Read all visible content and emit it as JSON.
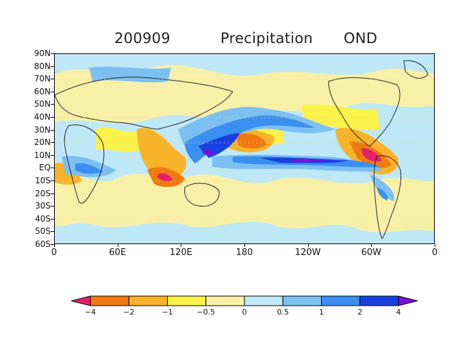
{
  "title": {
    "date": "200909",
    "variable": "Precipitation",
    "season": "OND"
  },
  "map": {
    "type": "anomaly-contour-map",
    "projection": "cylindrical",
    "lon_range": [
      0,
      360
    ],
    "lat_range": [
      -60,
      90
    ],
    "lat_labels": [
      "90N",
      "80N",
      "70N",
      "60N",
      "50N",
      "40N",
      "30N",
      "20N",
      "10N",
      "EQ",
      "10S",
      "20S",
      "30S",
      "40S",
      "50S",
      "60S"
    ],
    "lon_labels": [
      "0",
      "60E",
      "120E",
      "180",
      "120W",
      "60W",
      "0"
    ],
    "colors": {
      "lt_neg4": "#e6216b",
      "neg4_neg2": "#f07a10",
      "neg2_neg1": "#f8b32a",
      "neg1_neg05": "#fbf24a",
      "neg05_0": "#f9f0a8",
      "0_05": "#bfe8f6",
      "05_1": "#7cc0f2",
      "1_2": "#3a8ff0",
      "2_4": "#1a40e0",
      "gt_4": "#7a10d8"
    }
  },
  "colorbar": {
    "labels": [
      "−4",
      "−2",
      "−1",
      "−0.5",
      "0",
      "0.5",
      "1",
      "2",
      "4"
    ],
    "colors": [
      "#e6216b",
      "#f07a10",
      "#f8b32a",
      "#fbf24a",
      "#f9f0a8",
      "#bfe8f6",
      "#7cc0f2",
      "#3a8ff0",
      "#1a40e0",
      "#7a10d8"
    ]
  }
}
